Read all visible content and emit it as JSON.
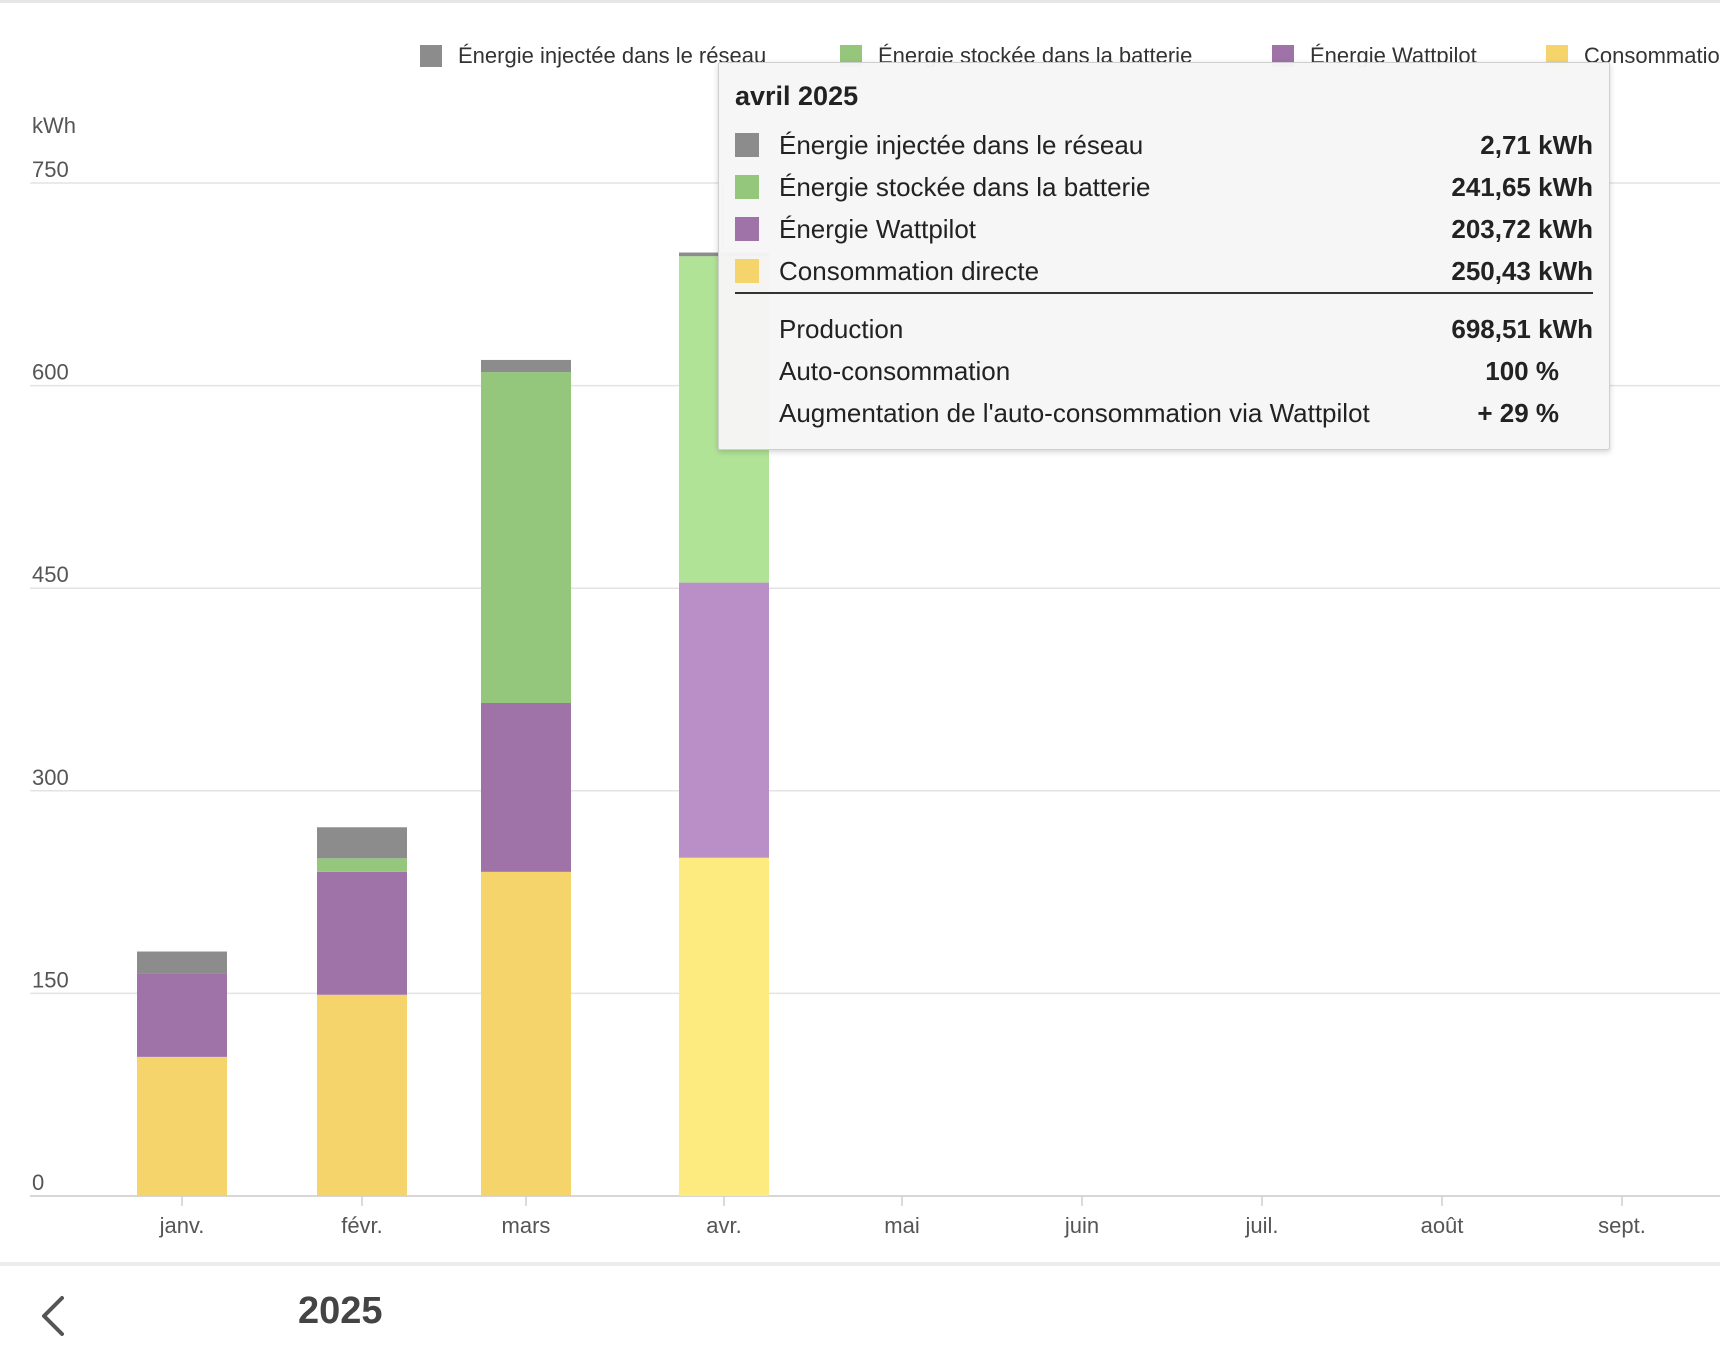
{
  "chart_data": {
    "type": "bar",
    "stacked": true,
    "ylabel": "kWh",
    "ylim": [
      0,
      750
    ],
    "yticks": [
      0,
      150,
      300,
      450,
      600,
      750
    ],
    "grid": true,
    "categories": [
      "janv.",
      "févr.",
      "mars",
      "avr.",
      "mai",
      "juin",
      "juil.",
      "août",
      "sept."
    ],
    "series": [
      {
        "name": "Consommation directe",
        "color": "#f5d46b",
        "values": [
          103,
          149,
          240,
          250.43,
          null,
          null,
          null,
          null,
          null
        ]
      },
      {
        "name": "Énergie Wattpilot",
        "color": "#9f72a8",
        "values": [
          62,
          91,
          125,
          203.72,
          null,
          null,
          null,
          null,
          null
        ]
      },
      {
        "name": "Énergie stockée dans la batterie",
        "color": "#94c77b",
        "values": [
          0,
          10,
          245,
          241.65,
          null,
          null,
          null,
          null,
          null
        ]
      },
      {
        "name": "Énergie injectée dans le réseau",
        "color": "#8c8c8c",
        "values": [
          16,
          23,
          9,
          2.71,
          null,
          null,
          null,
          null,
          null
        ]
      }
    ],
    "highlighted_category": "avr.",
    "highlight_colors": {
      "Consommation directe": "#fdeb80",
      "Énergie Wattpilot": "#ba8ec6",
      "Énergie stockée dans la batterie": "#b1e397",
      "Énergie injectée dans le réseau": "#8c8c8c"
    }
  },
  "legend": {
    "items": [
      {
        "label": "Énergie injectée dans le réseau",
        "color": "#8c8c8c"
      },
      {
        "label": "Énergie stockée dans la batterie",
        "color": "#94c77b"
      },
      {
        "label": "Énergie Wattpilot",
        "color": "#9f72a8"
      },
      {
        "label": "Consommation directe",
        "color": "#f5d46b"
      }
    ]
  },
  "tooltip": {
    "title": "avril 2025",
    "rows": [
      {
        "label": "Énergie injectée dans le réseau",
        "value": "2,71 kWh",
        "color": "#8c8c8c"
      },
      {
        "label": "Énergie stockée dans la batterie",
        "value": "241,65 kWh",
        "color": "#94c77b"
      },
      {
        "label": "Énergie Wattpilot",
        "value": "203,72 kWh",
        "color": "#9f72a8"
      },
      {
        "label": "Consommation directe",
        "value": "250,43 kWh",
        "color": "#f5d46b"
      }
    ],
    "production_label": "Production",
    "production_value": "698,51 kWh",
    "selfconsumption_label": "Auto-consommation",
    "selfconsumption_value": "100 %",
    "increase_label": "Augmentation de l'auto-consommation via Wattpilot",
    "increase_value": "+ 29 %"
  },
  "footer": {
    "year": "2025"
  }
}
